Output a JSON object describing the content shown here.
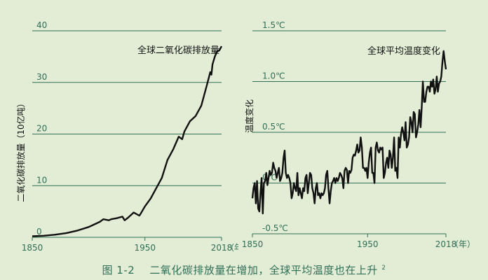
{
  "caption": {
    "label": "图 1-2",
    "text": "二氧化碳排放量在增加，全球平均温度也在上升",
    "note": "2"
  },
  "chart_data": [
    {
      "type": "line",
      "title": "全球二氧化碳排放量",
      "ylabel": "二氧化碳排放量（10亿吨）",
      "xlabel": "（年）",
      "ylim": [
        0,
        40
      ],
      "xlim": [
        1850,
        2018
      ],
      "yticks": [
        "0",
        "10",
        "20",
        "30",
        "40"
      ],
      "xticks": [
        "1850",
        "1950",
        "2018"
      ],
      "grid": true,
      "line_color": "#111111",
      "series": [
        {
          "x": [
            1850,
            1860,
            1870,
            1880,
            1890,
            1900,
            1905,
            1910,
            1913,
            1918,
            1920,
            1925,
            1930,
            1932,
            1935,
            1940,
            1945,
            1946,
            1950,
            1955,
            1960,
            1965,
            1970,
            1975,
            1980,
            1983,
            1985,
            1990,
            1995,
            2000,
            2005,
            2008,
            2009,
            2010,
            2012,
            2014,
            2016,
            2018
          ],
          "y": [
            0.2,
            0.3,
            0.5,
            0.8,
            1.3,
            2.0,
            2.5,
            3.0,
            3.5,
            3.3,
            3.5,
            3.7,
            4.0,
            3.3,
            3.8,
            4.8,
            4.2,
            4.5,
            6.0,
            7.5,
            9.5,
            11.5,
            15.0,
            17.0,
            19.5,
            19.0,
            20.5,
            22.5,
            23.5,
            25.5,
            29.5,
            32.0,
            31.5,
            33.5,
            35.0,
            36.0,
            36.2,
            37.0
          ]
        }
      ]
    },
    {
      "type": "line",
      "title": "全球平均温度变化",
      "ylabel": "温度变化",
      "xlabel": "（年）",
      "ylim": [
        -0.5,
        1.5
      ],
      "xlim": [
        1850,
        2018
      ],
      "yticks": [
        "-0.5℃",
        "0℃",
        "0.5℃",
        "1.0℃",
        "1.5℃"
      ],
      "xticks": [
        "1850",
        "1950",
        "2018"
      ],
      "grid": true,
      "line_color": "#111111",
      "series": [
        {
          "x": [
            1850,
            1851,
            1852,
            1853,
            1854,
            1855,
            1856,
            1857,
            1858,
            1859,
            1860,
            1861,
            1862,
            1863,
            1864,
            1865,
            1866,
            1867,
            1868,
            1869,
            1870,
            1871,
            1872,
            1873,
            1874,
            1875,
            1876,
            1877,
            1878,
            1879,
            1880,
            1881,
            1882,
            1883,
            1884,
            1885,
            1886,
            1887,
            1888,
            1889,
            1890,
            1891,
            1892,
            1893,
            1894,
            1895,
            1896,
            1897,
            1898,
            1899,
            1900,
            1901,
            1902,
            1903,
            1904,
            1905,
            1906,
            1907,
            1908,
            1909,
            1910,
            1911,
            1912,
            1913,
            1914,
            1915,
            1916,
            1917,
            1918,
            1919,
            1920,
            1921,
            1922,
            1923,
            1924,
            1925,
            1926,
            1927,
            1928,
            1929,
            1930,
            1931,
            1932,
            1933,
            1934,
            1935,
            1936,
            1937,
            1938,
            1939,
            1940,
            1941,
            1942,
            1943,
            1944,
            1945,
            1946,
            1947,
            1948,
            1949,
            1950,
            1951,
            1952,
            1953,
            1954,
            1955,
            1956,
            1957,
            1958,
            1959,
            1960,
            1961,
            1962,
            1963,
            1964,
            1965,
            1966,
            1967,
            1968,
            1969,
            1970,
            1971,
            1972,
            1973,
            1974,
            1975,
            1976,
            1977,
            1978,
            1979,
            1980,
            1981,
            1982,
            1983,
            1984,
            1985,
            1986,
            1987,
            1988,
            1989,
            1990,
            1991,
            1992,
            1993,
            1994,
            1995,
            1996,
            1997,
            1998,
            1999,
            2000,
            2001,
            2002,
            2003,
            2004,
            2005,
            2006,
            2007,
            2008,
            2009,
            2010,
            2011,
            2012,
            2013,
            2014,
            2015,
            2016,
            2017,
            2018
          ],
          "y": [
            -0.15,
            -0.05,
            0.0,
            -0.2,
            0.02,
            -0.25,
            -0.28,
            -0.1,
            0.05,
            -0.3,
            0.0,
            0.02,
            0.1,
            -0.02,
            0.05,
            0.12,
            0.08,
            0.1,
            0.2,
            0.15,
            0.12,
            0.05,
            0.1,
            0.15,
            0.02,
            0.05,
            0.1,
            0.25,
            0.32,
            0.1,
            0.05,
            0.08,
            0.05,
            0.0,
            -0.15,
            -0.1,
            0.0,
            -0.05,
            -0.08,
            0.1,
            -0.12,
            -0.05,
            -0.1,
            -0.15,
            -0.05,
            -0.08,
            0.05,
            0.08,
            -0.1,
            0.0,
            0.1,
            0.08,
            -0.05,
            -0.1,
            -0.2,
            -0.05,
            0.0,
            -0.12,
            -0.1,
            -0.15,
            -0.1,
            -0.12,
            -0.1,
            -0.05,
            0.08,
            0.12,
            -0.05,
            -0.2,
            -0.08,
            0.0,
            0.02,
            0.05,
            0.0,
            0.05,
            0.02,
            0.05,
            0.1,
            0.08,
            0.05,
            -0.05,
            0.12,
            0.15,
            0.13,
            0.0,
            0.12,
            0.1,
            0.13,
            0.25,
            0.28,
            0.27,
            0.32,
            0.38,
            0.3,
            0.32,
            0.45,
            0.35,
            0.15,
            0.15,
            0.12,
            0.15,
            0.05,
            0.2,
            0.3,
            0.35,
            0.1,
            0.1,
            0.0,
            0.35,
            0.4,
            0.32,
            0.3,
            0.35,
            0.33,
            0.35,
            0.05,
            0.1,
            0.2,
            0.25,
            0.15,
            0.32,
            0.28,
            0.15,
            0.25,
            0.45,
            0.12,
            0.15,
            0.05,
            0.45,
            0.35,
            0.48,
            0.55,
            0.5,
            0.42,
            0.6,
            0.35,
            0.38,
            0.45,
            0.65,
            0.6,
            0.5,
            0.7,
            0.68,
            0.45,
            0.5,
            0.58,
            0.72,
            0.55,
            0.75,
            1.0,
            0.8,
            0.8,
            0.9,
            0.95,
            0.95,
            0.9,
            1.0,
            0.95,
            1.02,
            0.88,
            0.92,
            1.05,
            0.9,
            0.98,
            1.0,
            1.05,
            1.2,
            1.3,
            1.2,
            1.12
          ]
        }
      ]
    }
  ],
  "colors": {
    "background": "#e3edd6",
    "grid": "#2f6e57",
    "axis_text": "#2f6e57",
    "line": "#111111",
    "caption": "#2f6e57"
  }
}
